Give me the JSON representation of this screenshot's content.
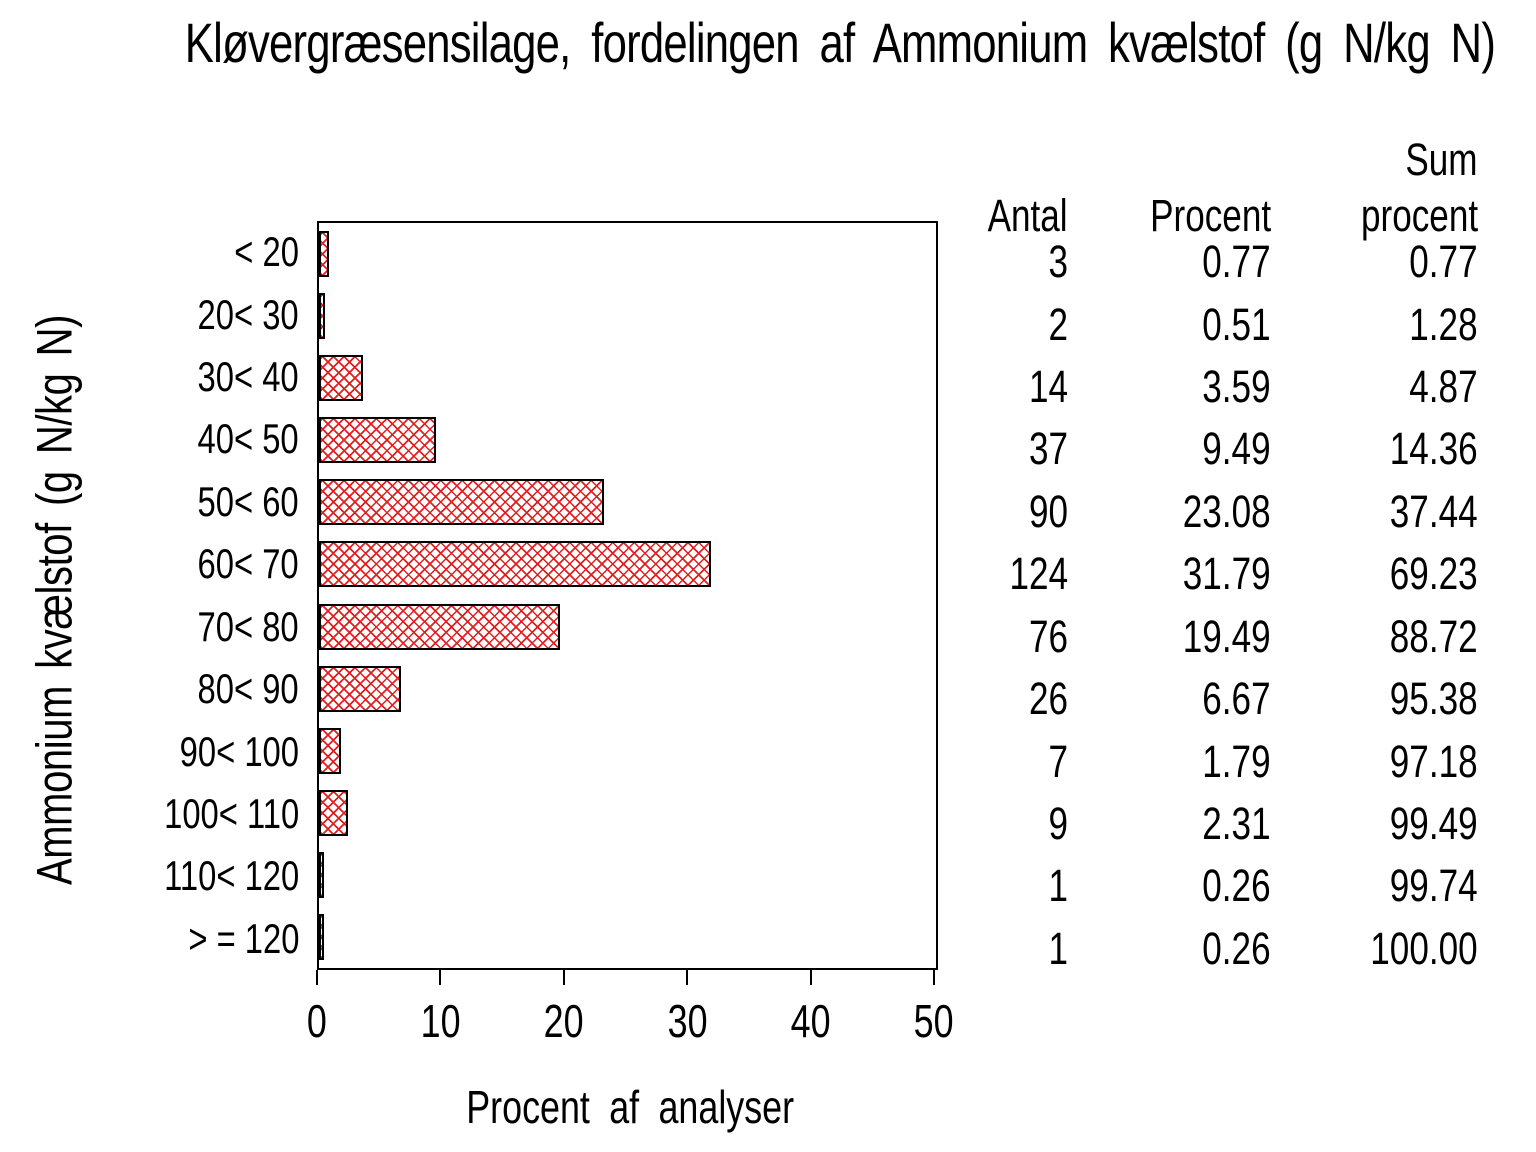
{
  "title": "Kløvergræsensilage, fordelingen af Ammonium kvælstof (g N/kg N)",
  "colors": {
    "background": "#ffffff",
    "text": "#000000",
    "bar_hatch": "#e02020",
    "bar_border": "#000000"
  },
  "chart_data": {
    "type": "bar",
    "orientation": "horizontal",
    "title": "Kløvergræsensilage, fordelingen af Ammonium kvælstof (g N/kg N)",
    "xlabel": "Procent af analyser",
    "ylabel": "Ammonium kvælstof (g N/kg N)",
    "xlim": [
      0,
      50
    ],
    "xticks": [
      "0",
      "10",
      "20",
      "30",
      "40",
      "50"
    ],
    "xtick_values": [
      0,
      10,
      20,
      30,
      40,
      50
    ],
    "grid": false,
    "legend": "none",
    "categories": [
      "< 20",
      "20< 30",
      "30< 40",
      "40< 50",
      "50< 60",
      "60< 70",
      "70< 80",
      "80< 90",
      "90< 100",
      "100< 110",
      "110< 120",
      "> = 120"
    ],
    "values": [
      0.77,
      0.51,
      3.59,
      9.49,
      23.08,
      31.79,
      19.49,
      6.67,
      1.79,
      2.31,
      0.26,
      0.26
    ],
    "bar_style": "red-crosshatch",
    "table": {
      "header_line1": [
        "",
        "",
        "Sum"
      ],
      "header_line2": [
        "Antal",
        "Procent",
        "procent"
      ],
      "rows": [
        [
          "3",
          "0.77",
          "0.77"
        ],
        [
          "2",
          "0.51",
          "1.28"
        ],
        [
          "14",
          "3.59",
          "4.87"
        ],
        [
          "37",
          "9.49",
          "14.36"
        ],
        [
          "90",
          "23.08",
          "37.44"
        ],
        [
          "124",
          "31.79",
          "69.23"
        ],
        [
          "76",
          "19.49",
          "88.72"
        ],
        [
          "26",
          "6.67",
          "95.38"
        ],
        [
          "7",
          "1.79",
          "97.18"
        ],
        [
          "9",
          "2.31",
          "99.49"
        ],
        [
          "1",
          "0.26",
          "99.74"
        ],
        [
          "1",
          "0.26",
          "100.00"
        ]
      ]
    }
  }
}
